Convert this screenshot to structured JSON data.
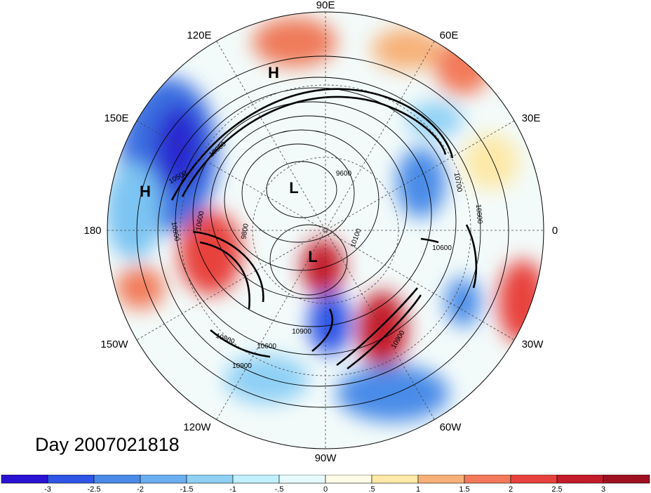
{
  "title": "Day 2007021818",
  "longitude_labels": [
    "90E",
    "60E",
    "30E",
    "0",
    "30W",
    "60W",
    "90W",
    "120W",
    "150W",
    "180",
    "150E",
    "120E"
  ],
  "pressure_labels": [
    "H",
    "H",
    "L",
    "L"
  ],
  "contour_labels": [
    "9600",
    "9800",
    "10100",
    "10500",
    "10600",
    "10600",
    "10700",
    "10800",
    "10800",
    "10800",
    "10800",
    "10900",
    "10900",
    "10900",
    "10600"
  ],
  "colorbar": {
    "ticks": [
      "-3",
      "-2.5",
      "-2",
      "-1.5",
      "-1",
      "-.5",
      "0",
      ".5",
      "1",
      "1.5",
      "2",
      "2.5",
      "3"
    ],
    "colors": [
      "#2a12d2",
      "#2f55e6",
      "#4a8be8",
      "#6aaef0",
      "#8fd0f5",
      "#bff0fb",
      "#e6fbff",
      "#fffbe6",
      "#fde9a8",
      "#f7b178",
      "#f27a5a",
      "#e8423e",
      "#c41d2a",
      "#9e0f20"
    ]
  }
}
